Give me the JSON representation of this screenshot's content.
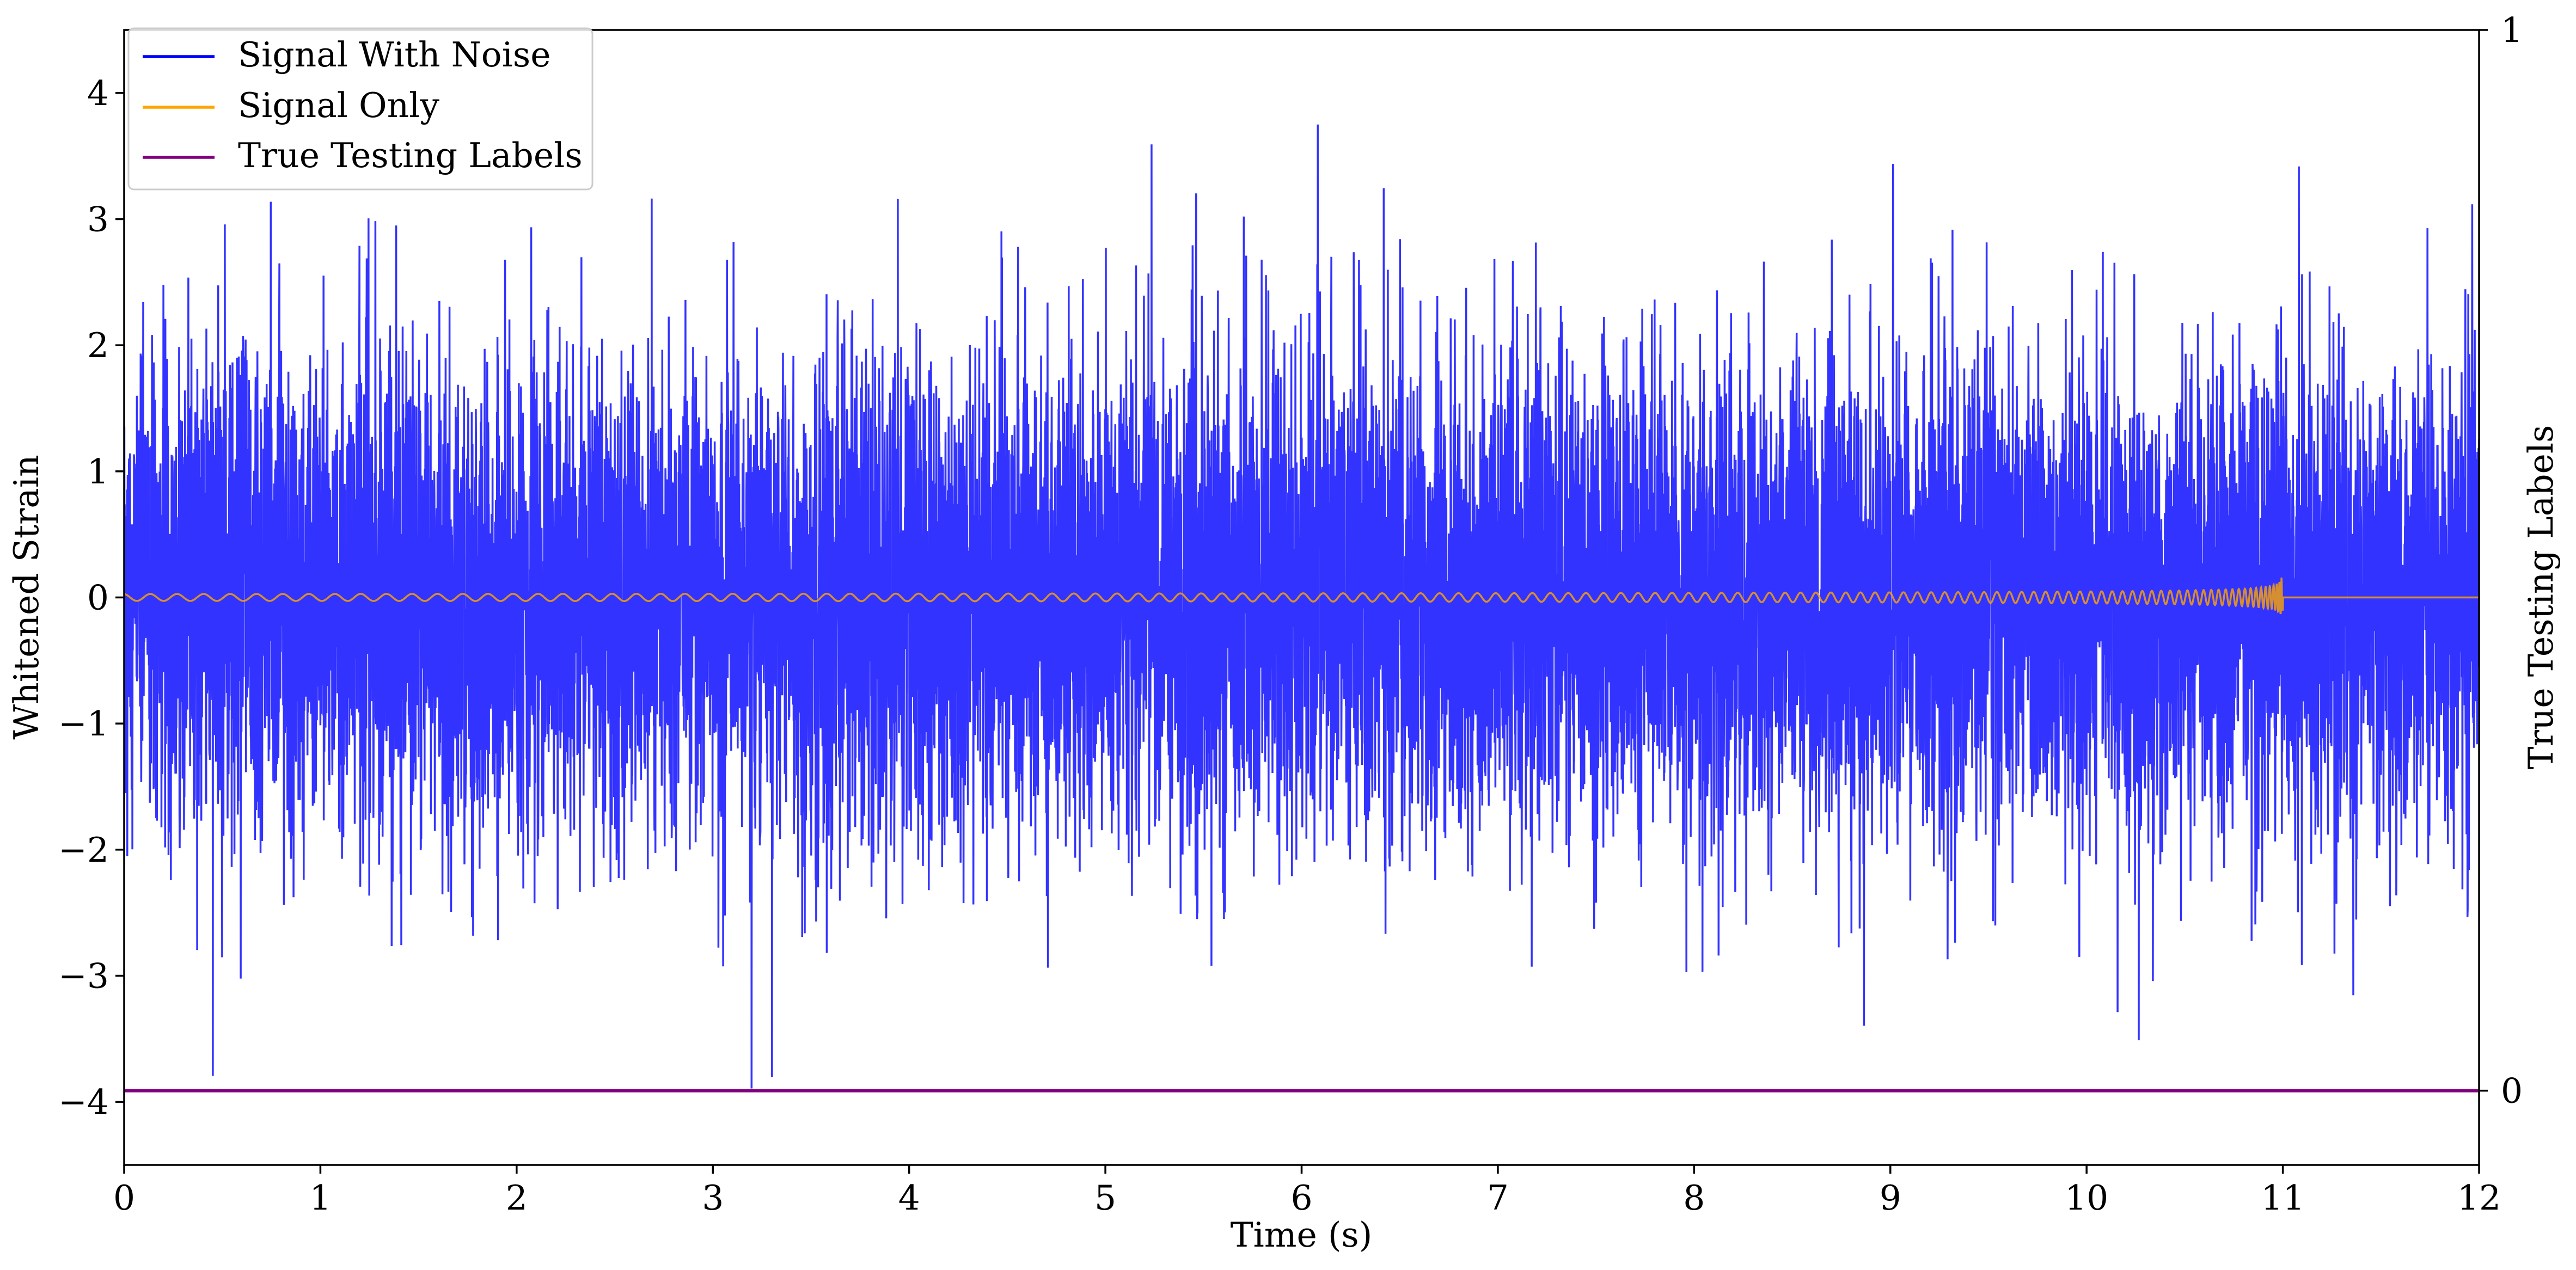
{
  "chart_data": {
    "type": "line",
    "xlabel": "Time (s)",
    "ylabel": "Whitened Strain",
    "y2label": "True Testing Labels",
    "xlim": [
      0,
      12
    ],
    "ylim": [
      -4.5,
      4.5
    ],
    "y2lim": [
      -0.07,
      1
    ],
    "xticks": [
      0,
      1,
      2,
      3,
      4,
      5,
      6,
      7,
      8,
      9,
      10,
      11,
      12
    ],
    "xtick_labels": [
      "0",
      "1",
      "2",
      "3",
      "4",
      "5",
      "6",
      "7",
      "8",
      "9",
      "10",
      "11",
      "12"
    ],
    "yticks": [
      4,
      3,
      2,
      1,
      0,
      -1,
      -2,
      -3,
      -4
    ],
    "ytick_labels": [
      "4",
      "3",
      "2",
      "1",
      "0",
      "−1",
      "−2",
      "−3",
      "−4"
    ],
    "y2ticks": [
      1,
      0
    ],
    "y2tick_labels": [
      "1",
      "0"
    ],
    "grid": false,
    "legend_position": "top-left",
    "series": [
      {
        "name": "Signal With Noise",
        "color": "#0000ff",
        "kind": "noise",
        "axis": "left",
        "approx_std": 1.0,
        "approx_min": -4.2,
        "approx_max": 4.1,
        "x_range": [
          0,
          12
        ]
      },
      {
        "name": "Signal Only",
        "color": "#ffa500",
        "kind": "chirp",
        "axis": "left",
        "x_range": [
          0,
          12
        ],
        "merger_time": 11.0,
        "peak_amplitude": 0.18
      },
      {
        "name": "True Testing Labels",
        "color": "#800080",
        "kind": "constant",
        "axis": "right",
        "x": [
          0,
          12
        ],
        "values": [
          0,
          0
        ]
      }
    ]
  }
}
